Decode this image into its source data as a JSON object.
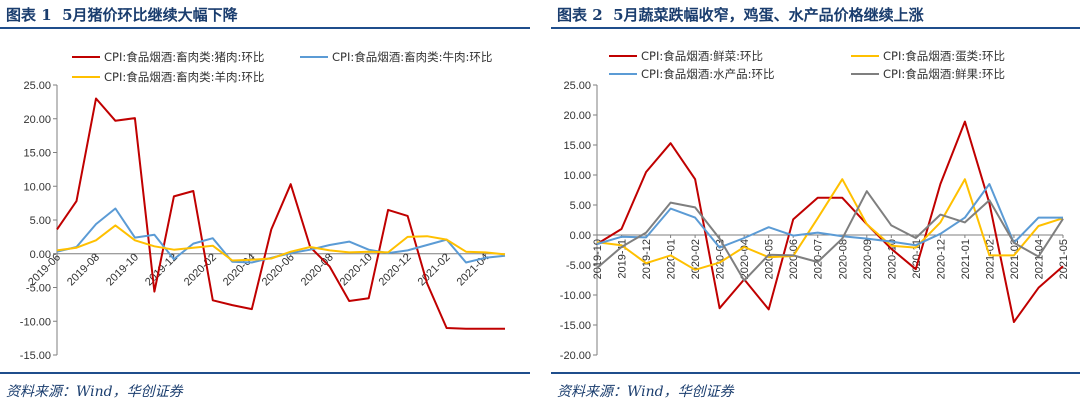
{
  "charts": [
    {
      "figure_label": "图表 1",
      "title": "5月猪价环比继续大幅下降",
      "source": "资料来源：Wind，华创证券",
      "chart_data": {
        "type": "line",
        "ylim": [
          -15,
          25
        ],
        "yticks": [
          -15,
          -10,
          -5,
          0,
          5,
          10,
          15,
          20,
          25
        ],
        "ytick_labels": [
          "-15.00",
          "-10.00",
          "-5.00",
          "0.00",
          "5.00",
          "10.00",
          "15.00",
          "20.00",
          "25.00"
        ],
        "x": [
          "2019-06",
          "2019-07",
          "2019-08",
          "2019-09",
          "2019-10",
          "2019-11",
          "2019-12",
          "2020-01",
          "2020-02",
          "2020-03",
          "2020-04",
          "2020-05",
          "2020-06",
          "2020-07",
          "2020-08",
          "2020-09",
          "2020-10",
          "2020-11",
          "2020-12",
          "2021-01",
          "2021-02",
          "2021-03",
          "2021-04",
          "2021-05"
        ],
        "xtick_labels": [
          "2019-06",
          "2019-08",
          "2019-10",
          "2019-12",
          "2020-02",
          "2020-04",
          "2020-06",
          "2020-08",
          "2020-10",
          "2020-12",
          "2021-02",
          "2021-04"
        ],
        "xtick_rotation": -45,
        "grid": false,
        "legend_position": "top",
        "series": [
          {
            "name": "CPI:食品烟酒:畜肉类:猪肉:环比",
            "color": "#c00000",
            "values": [
              3.6,
              7.8,
              23.0,
              19.7,
              20.1,
              -5.6,
              8.5,
              9.3,
              -6.9,
              -7.6,
              -8.2,
              3.6,
              10.3,
              1.0,
              -1.9,
              -7.0,
              -6.6,
              6.5,
              5.6,
              -4.4,
              -11.0,
              -11.1,
              -11.1,
              -11.1
            ]
          },
          {
            "name": "CPI:食品烟酒:畜肉类:牛肉:环比",
            "color": "#5b9bd5",
            "values": [
              0.3,
              1.0,
              4.4,
              6.7,
              2.4,
              2.8,
              -0.8,
              1.5,
              2.3,
              -1.2,
              -1.3,
              -0.6,
              0.1,
              0.6,
              1.3,
              1.8,
              0.6,
              0.1,
              0.5,
              1.3,
              2.1,
              -1.3,
              -0.6,
              -0.3
            ]
          },
          {
            "name": "CPI:食品烟酒:畜肉类:羊肉:环比",
            "color": "#ffc000",
            "values": [
              0.5,
              0.9,
              2.0,
              4.2,
              2.0,
              1.1,
              0.6,
              0.9,
              1.2,
              -1.0,
              -0.9,
              -0.7,
              0.3,
              1.0,
              0.5,
              0.2,
              0.3,
              0.2,
              2.5,
              2.6,
              2.1,
              0.3,
              0.2,
              -0.1
            ]
          }
        ]
      }
    },
    {
      "figure_label": "图表 2",
      "title": "5月蔬菜跌幅收窄，鸡蛋、水产品价格继续上涨",
      "source": "资料来源：Wind，华创证券",
      "chart_data": {
        "type": "line",
        "ylim": [
          -20,
          25
        ],
        "yticks": [
          -20,
          -15,
          -10,
          -5,
          0,
          5,
          10,
          15,
          20,
          25
        ],
        "ytick_labels": [
          "-20.00",
          "-15.00",
          "-10.00",
          "-5.00",
          "0.00",
          "5.00",
          "10.00",
          "15.00",
          "20.00",
          "25.00"
        ],
        "x": [
          "2019-10",
          "2019-11",
          "2019-12",
          "2020-01",
          "2020-02",
          "2020-03",
          "2020-04",
          "2020-05",
          "2020-06",
          "2020-07",
          "2020-08",
          "2020-09",
          "2020-10",
          "2020-11",
          "2020-12",
          "2021-01",
          "2021-02",
          "2021-03",
          "2021-04",
          "2021-05"
        ],
        "xtick_labels": [
          "2019-10",
          "2019-11",
          "2019-12",
          "2020-01",
          "2020-02",
          "2020-03",
          "2020-04",
          "2020-05",
          "2020-06",
          "2020-07",
          "2020-08",
          "2020-09",
          "2020-10",
          "2020-11",
          "2020-12",
          "2021-01",
          "2021-02",
          "2021-03",
          "2021-04",
          "2021-05"
        ],
        "xtick_rotation": -90,
        "grid": false,
        "legend_position": "top",
        "series": [
          {
            "name": "CPI:食品烟酒:鲜菜:环比",
            "color": "#c00000",
            "values": [
              -1.5,
              1.0,
              10.5,
              15.3,
              9.3,
              -12.2,
              -7.4,
              -12.4,
              2.6,
              6.2,
              6.2,
              1.8,
              -2.3,
              -5.7,
              8.5,
              18.9,
              5.3,
              -14.5,
              -8.8,
              -5.2
            ]
          },
          {
            "name": "CPI:食品烟酒:蛋类:环比",
            "color": "#ffc000",
            "values": [
              -1.2,
              -1.7,
              -4.7,
              -3.4,
              -5.8,
              -4.6,
              -2.0,
              -3.7,
              -3.5,
              2.8,
              9.3,
              1.8,
              -1.8,
              -2.1,
              2.1,
              9.3,
              -3.4,
              -3.4,
              1.5,
              2.8
            ]
          },
          {
            "name": "CPI:食品烟酒:水产品:环比",
            "color": "#5b9bd5",
            "values": [
              -1.5,
              -0.3,
              -0.4,
              4.4,
              2.9,
              -2.1,
              -0.5,
              1.3,
              -0.1,
              0.4,
              -0.2,
              -0.6,
              -1.1,
              -1.7,
              0.2,
              2.9,
              8.5,
              -1.3,
              2.9,
              2.9
            ]
          },
          {
            "name": "CPI:食品烟酒:鲜果:环比",
            "color": "#7f7f7f",
            "values": [
              -5.5,
              -2.0,
              0.4,
              5.4,
              4.6,
              -0.6,
              -7.6,
              -3.3,
              -3.4,
              -4.5,
              -0.6,
              7.3,
              1.6,
              -0.5,
              3.4,
              2.1,
              5.8,
              -1.3,
              -3.6,
              2.7
            ]
          }
        ]
      }
    }
  ]
}
